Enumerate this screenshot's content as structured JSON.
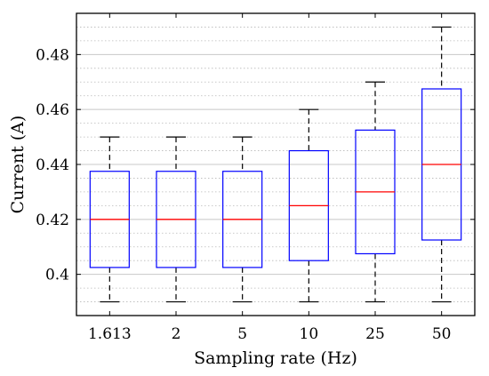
{
  "chart_data": {
    "type": "box",
    "title": "",
    "xlabel": "Sampling rate (Hz)",
    "ylabel": "Current (A)",
    "ylim": [
      0.385,
      0.495
    ],
    "yticks": [
      0.4,
      0.42,
      0.44,
      0.46,
      0.48
    ],
    "ytick_labels": [
      "0.4",
      "0.42",
      "0.44",
      "0.46",
      "0.48"
    ],
    "grid": {
      "major": true,
      "minor": true
    },
    "categories": [
      "1.613",
      "2",
      "5",
      "10",
      "25",
      "50"
    ],
    "boxes": [
      {
        "category": "1.613",
        "whisker_low": 0.39,
        "q1": 0.4025,
        "median": 0.42,
        "q3": 0.4375,
        "whisker_high": 0.45
      },
      {
        "category": "2",
        "whisker_low": 0.39,
        "q1": 0.4025,
        "median": 0.42,
        "q3": 0.4375,
        "whisker_high": 0.45
      },
      {
        "category": "5",
        "whisker_low": 0.39,
        "q1": 0.4025,
        "median": 0.42,
        "q3": 0.4375,
        "whisker_high": 0.45
      },
      {
        "category": "10",
        "whisker_low": 0.39,
        "q1": 0.405,
        "median": 0.425,
        "q3": 0.445,
        "whisker_high": 0.46
      },
      {
        "category": "25",
        "whisker_low": 0.39,
        "q1": 0.4075,
        "median": 0.43,
        "q3": 0.4525,
        "whisker_high": 0.47
      },
      {
        "category": "50",
        "whisker_low": 0.39,
        "q1": 0.4125,
        "median": 0.44,
        "q3": 0.4675,
        "whisker_high": 0.49
      }
    ],
    "colors": {
      "box": "#0000ff",
      "median": "#ff0000",
      "whisker": "#000000",
      "grid": "#c8c8c8"
    }
  }
}
